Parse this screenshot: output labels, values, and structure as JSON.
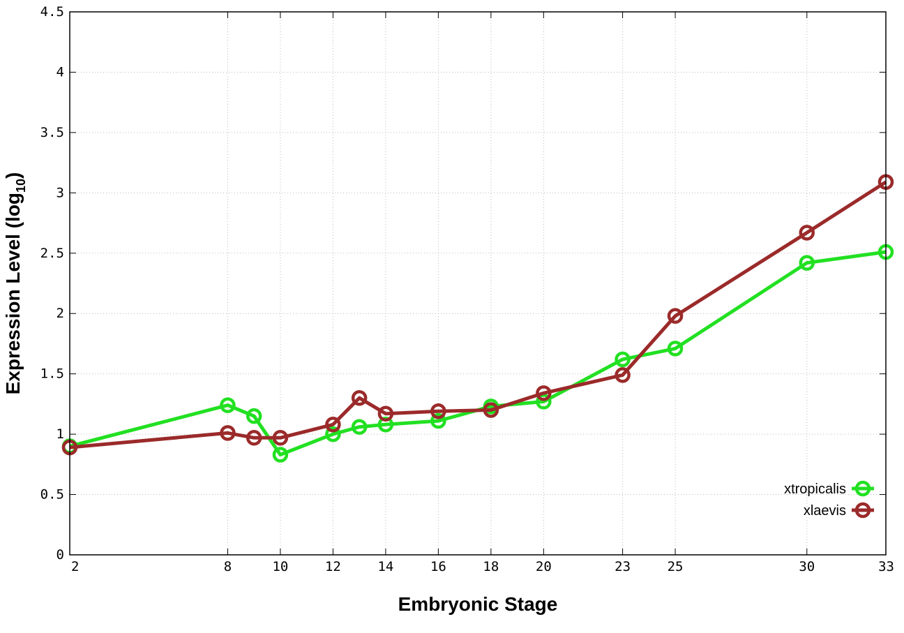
{
  "chart_data": {
    "type": "line",
    "xlabel": "Embryonic Stage",
    "ylabel_main": "Expression Level (log",
    "ylabel_sub": "10",
    "ylabel_close": ")",
    "ylim": [
      0,
      4.5
    ],
    "y_ticks": [
      "0",
      "0.5",
      "1",
      "1.5",
      "2",
      "2.5",
      "3",
      "3.5",
      "4",
      "4.5"
    ],
    "categories": [
      "2",
      "8",
      "9",
      "10",
      "12",
      "13",
      "14",
      "16",
      "18",
      "20",
      "23",
      "25",
      "30",
      "33"
    ],
    "x_tick_labels": [
      "2",
      "8",
      "10",
      "12",
      "14",
      "16",
      "18",
      "20",
      "23",
      "25",
      "30",
      "33"
    ],
    "grid": true,
    "legend_position": "bottom-right",
    "series": [
      {
        "name": "xtropicalis",
        "color": "#22e022",
        "values": [
          0.9,
          1.24,
          1.15,
          0.83,
          1.0,
          1.06,
          1.08,
          1.11,
          1.23,
          1.27,
          1.62,
          1.71,
          2.42,
          2.51
        ]
      },
      {
        "name": "xlaevis",
        "color": "#9b2a2a",
        "values": [
          0.89,
          1.01,
          0.97,
          0.97,
          1.08,
          1.3,
          1.17,
          1.19,
          1.2,
          1.34,
          1.49,
          1.98,
          2.67,
          3.09
        ]
      }
    ]
  }
}
